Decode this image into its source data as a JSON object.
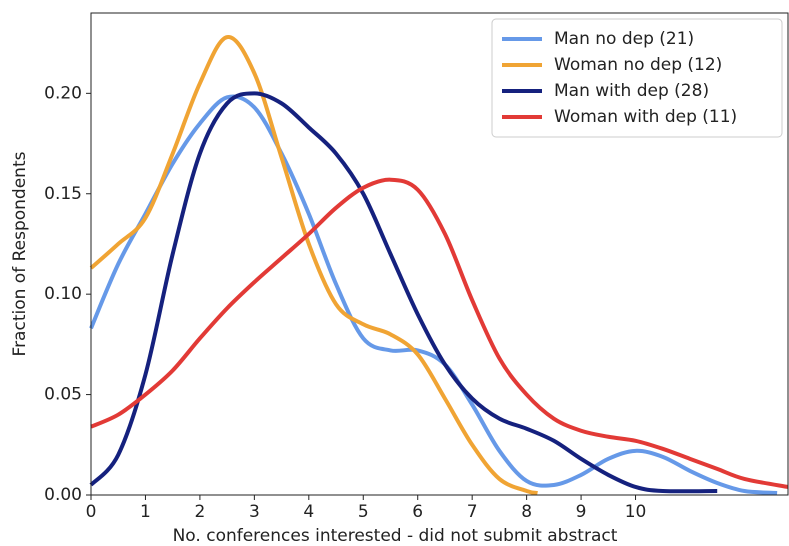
{
  "chart_data": {
    "type": "line",
    "xlabel": "No. conferences interested - did not submit abstract",
    "ylabel": "Fraction of Respondents",
    "xlim": [
      0,
      12.8
    ],
    "ylim": [
      0,
      0.24
    ],
    "xticks": [
      0,
      1,
      2,
      3,
      4,
      5,
      6,
      7,
      8,
      9,
      10
    ],
    "yticks": [
      {
        "value": 0,
        "label": "0.00"
      },
      {
        "value": 0.05,
        "label": "0.05"
      },
      {
        "value": 0.1,
        "label": "0.10"
      },
      {
        "value": 0.15,
        "label": "0.15"
      },
      {
        "value": 0.2,
        "label": "0.20"
      }
    ],
    "legend": "upper right",
    "series": [
      {
        "name": "Man no dep (21)",
        "color": "#6699e8",
        "x": [
          0,
          0.5,
          1,
          1.5,
          2,
          2.5,
          3,
          3.5,
          4,
          4.5,
          5,
          5.5,
          6,
          6.5,
          7,
          7.5,
          8,
          8.5,
          9,
          9.5,
          10,
          10.5,
          11,
          11.5,
          12,
          12.6
        ],
        "values": [
          0.083,
          0.115,
          0.14,
          0.165,
          0.185,
          0.198,
          0.193,
          0.17,
          0.14,
          0.105,
          0.078,
          0.072,
          0.072,
          0.065,
          0.045,
          0.022,
          0.007,
          0.005,
          0.01,
          0.018,
          0.022,
          0.019,
          0.012,
          0.006,
          0.002,
          0.001
        ]
      },
      {
        "name": "Woman no dep (12)",
        "color": "#f0a434",
        "x": [
          0,
          0.5,
          1,
          1.5,
          2,
          2.5,
          3,
          3.5,
          4,
          4.5,
          5,
          5.5,
          6,
          6.5,
          7,
          7.5,
          8,
          8.2
        ],
        "values": [
          0.113,
          0.125,
          0.138,
          0.17,
          0.205,
          0.228,
          0.21,
          0.168,
          0.125,
          0.095,
          0.085,
          0.08,
          0.07,
          0.048,
          0.025,
          0.008,
          0.002,
          0.001
        ]
      },
      {
        "name": "Man with dep (28)",
        "color": "#15217e",
        "x": [
          0,
          0.5,
          1,
          1.5,
          2,
          2.5,
          3,
          3.5,
          4,
          4.5,
          5,
          5.5,
          6,
          6.5,
          7,
          7.5,
          8,
          8.5,
          9,
          9.5,
          10,
          10.5,
          11.5
        ],
        "values": [
          0.005,
          0.02,
          0.06,
          0.12,
          0.17,
          0.195,
          0.2,
          0.195,
          0.183,
          0.17,
          0.15,
          0.12,
          0.09,
          0.065,
          0.048,
          0.038,
          0.033,
          0.027,
          0.018,
          0.01,
          0.004,
          0.002,
          0.002
        ]
      },
      {
        "name": "Woman with dep (11)",
        "color": "#e23a36",
        "x": [
          0,
          0.5,
          1,
          1.5,
          2,
          2.5,
          3,
          3.5,
          4,
          4.5,
          5,
          5.5,
          6,
          6.5,
          7,
          7.5,
          8,
          8.5,
          9,
          9.5,
          10,
          10.5,
          11,
          11.5,
          12,
          12.8
        ],
        "values": [
          0.034,
          0.04,
          0.05,
          0.062,
          0.078,
          0.093,
          0.106,
          0.118,
          0.13,
          0.143,
          0.153,
          0.157,
          0.152,
          0.13,
          0.097,
          0.068,
          0.05,
          0.038,
          0.032,
          0.029,
          0.027,
          0.023,
          0.018,
          0.013,
          0.008,
          0.004
        ]
      }
    ]
  }
}
